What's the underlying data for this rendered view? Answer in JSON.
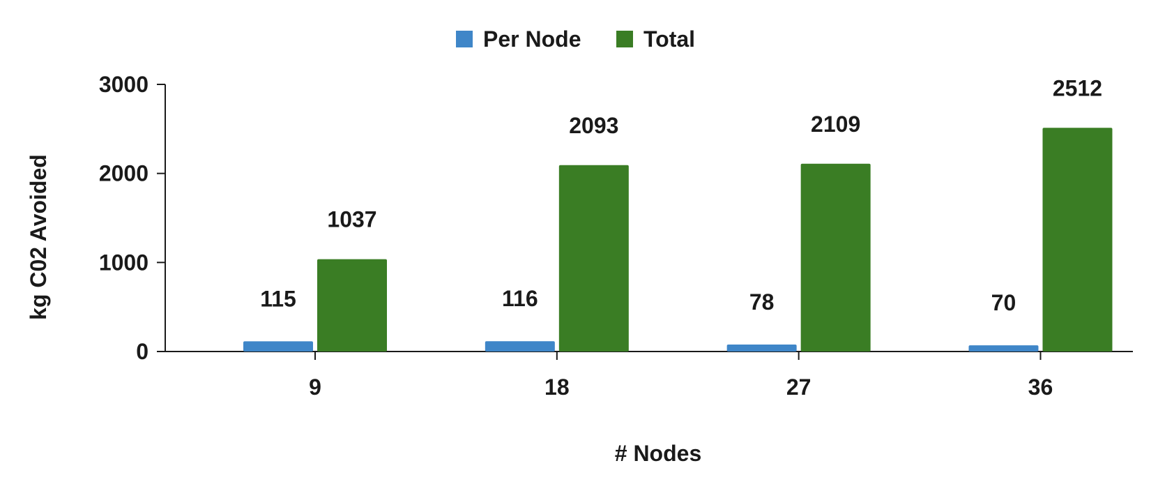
{
  "chart_data": {
    "type": "bar",
    "title": "",
    "xlabel": "# Nodes",
    "ylabel": "kg C02 Avoided",
    "categories": [
      "9",
      "18",
      "27",
      "36"
    ],
    "series": [
      {
        "name": "Per Node",
        "color": "#3f86c8",
        "values": [
          115,
          116,
          78,
          70
        ]
      },
      {
        "name": "Total",
        "color": "#3a7d24",
        "values": [
          1037,
          2093,
          2109,
          2512
        ]
      }
    ],
    "ylim": [
      0,
      3000
    ],
    "yticks": [
      0,
      1000,
      2000,
      3000
    ],
    "grid": false,
    "legend_position": "top-center",
    "data_labels": true
  }
}
